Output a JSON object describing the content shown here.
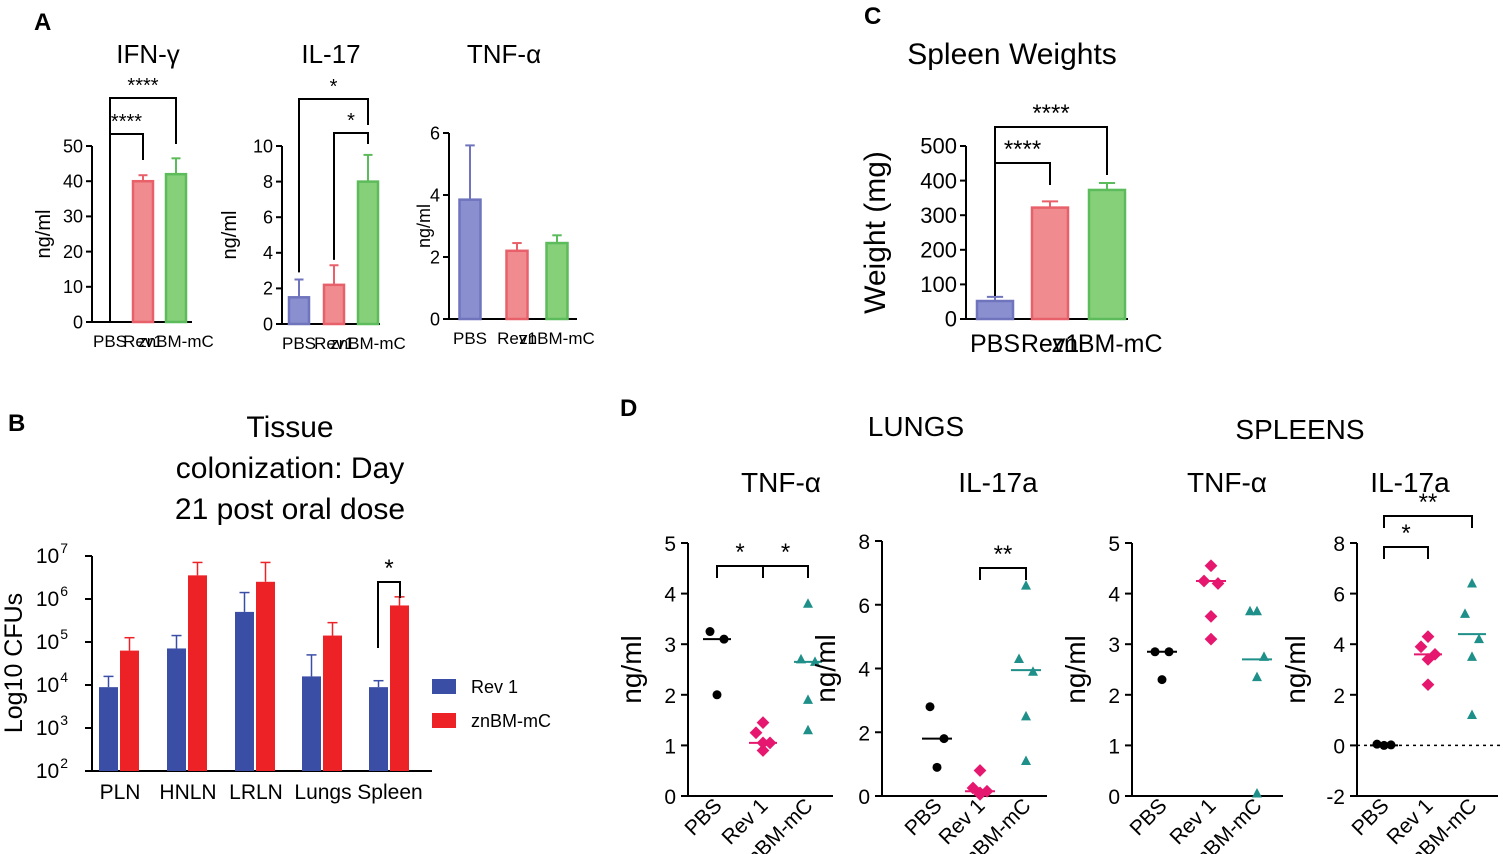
{
  "colors": {
    "blue": "#6f74bd",
    "blue_fill": "#8a8fcf",
    "red": "#e8616a",
    "red_fill": "#f08c90",
    "green": "#5cbb5a",
    "green_fill": "#86d07a",
    "rev_blue": "#3b4ea6",
    "zn_red": "#ec2227",
    "magenta": "#e5176f",
    "teal": "#1f8f89"
  },
  "panel_labels": {
    "a": "A",
    "b": "B",
    "c": "C",
    "d": "D"
  },
  "chart_data": [
    {
      "id": "A1",
      "type": "bar",
      "title": "IFN-γ",
      "ylabel": "ng/ml",
      "ylim": [
        0,
        50
      ],
      "yticks": [
        "0",
        "10",
        "20",
        "30",
        "40",
        "50"
      ],
      "categories": [
        "PBS",
        "Rev1",
        "znBM-mC"
      ],
      "values": [
        0,
        40,
        42
      ],
      "errors": [
        0,
        1.7,
        4.5
      ],
      "sig": [
        {
          "from": 0,
          "to": 1,
          "label": "****"
        },
        {
          "from": 0,
          "to": 2,
          "label": "****"
        }
      ]
    },
    {
      "id": "A2",
      "type": "bar",
      "title": "IL-17",
      "ylabel": "ng/ml",
      "ylim": [
        0,
        10
      ],
      "yticks": [
        "0",
        "2",
        "4",
        "6",
        "8",
        "10"
      ],
      "categories": [
        "PBS",
        "Rev1",
        "znBM-mC"
      ],
      "values": [
        1.5,
        2.2,
        8.0
      ],
      "errors": [
        1.0,
        1.1,
        1.5
      ],
      "sig": [
        {
          "from": 1,
          "to": 2,
          "label": "*"
        },
        {
          "from": 0,
          "to": 2,
          "label": "*"
        }
      ]
    },
    {
      "id": "A3",
      "type": "bar",
      "title": "TNF-α",
      "ylabel": "ng/ml",
      "ylim": [
        0,
        6
      ],
      "yticks": [
        "0",
        "2",
        "4",
        "6"
      ],
      "categories": [
        "PBS",
        "Rev1",
        "znBM-mC"
      ],
      "values": [
        3.85,
        2.2,
        2.45
      ],
      "errors": [
        1.75,
        0.25,
        0.25
      ],
      "sig": []
    },
    {
      "id": "B",
      "type": "bar",
      "title": [
        "Tissue",
        "colonization: Day",
        "21 post oral dose"
      ],
      "ylabel": "Log10 CFUs",
      "ylim_log10": [
        2,
        7
      ],
      "yticks": [
        {
          "base": "10",
          "exp": "2"
        },
        {
          "base": "10",
          "exp": "3"
        },
        {
          "base": "10",
          "exp": "4"
        },
        {
          "base": "10",
          "exp": "5"
        },
        {
          "base": "10",
          "exp": "6"
        },
        {
          "base": "10",
          "exp": "7"
        }
      ],
      "categories": [
        "PLN",
        "HNLN",
        "LRLN",
        "Lungs",
        "Spleen"
      ],
      "series": [
        {
          "name": "Rev 1",
          "log10_values": [
            3.95,
            4.85,
            5.7,
            4.2,
            3.95
          ],
          "log10_upper": [
            4.2,
            5.15,
            6.15,
            4.7,
            4.1
          ]
        },
        {
          "name": "znBM-mC",
          "log10_values": [
            4.8,
            6.55,
            6.4,
            5.15,
            5.85
          ],
          "log10_upper": [
            5.1,
            6.85,
            6.85,
            5.45,
            6.05
          ]
        }
      ],
      "sig": [
        {
          "category": 4,
          "label": "*"
        }
      ]
    },
    {
      "id": "C",
      "type": "bar",
      "title": "Spleen Weights",
      "ylabel": "Weight (mg)",
      "ylim": [
        0,
        500
      ],
      "yticks": [
        "0",
        "100",
        "200",
        "300",
        "400",
        "500"
      ],
      "categories": [
        "PBS",
        "Rev1",
        "znBM-mC"
      ],
      "values": [
        52,
        322,
        373
      ],
      "errors": [
        12,
        18,
        20
      ],
      "sig": [
        {
          "from": 0,
          "to": 1,
          "label": "****"
        },
        {
          "from": 0,
          "to": 2,
          "label": "****"
        }
      ]
    },
    {
      "id": "D_group_labels",
      "labels": [
        "LUNGS",
        "SPLEENS"
      ]
    },
    {
      "id": "D1",
      "type": "scatter",
      "title": "TNF-α",
      "ylabel": "ng/ml",
      "ylim": [
        0,
        5
      ],
      "yticks": [
        "0",
        "1",
        "2",
        "3",
        "4",
        "5"
      ],
      "categories": [
        "PBS",
        "Rev 1",
        "znBM-mC"
      ],
      "points": [
        [
          3.25,
          3.1,
          2.0
        ],
        [
          1.45,
          1.25,
          1.05,
          1.05,
          0.9
        ],
        [
          3.8,
          2.7,
          2.65,
          1.9,
          1.3
        ]
      ],
      "means": [
        3.1,
        1.05,
        2.65
      ],
      "sig": [
        {
          "from": 0,
          "to": 1,
          "label": "*"
        },
        {
          "from": 1,
          "to": 2,
          "label": "*"
        }
      ]
    },
    {
      "id": "D2",
      "type": "scatter",
      "title": "IL-17a",
      "ylabel": "ng/ml",
      "ylim": [
        0,
        8
      ],
      "yticks": [
        "0",
        "2",
        "4",
        "6",
        "8"
      ],
      "categories": [
        "PBS",
        "Rev 1",
        "znBM-mC"
      ],
      "points": [
        [
          2.8,
          1.8,
          0.9
        ],
        [
          0.8,
          0.25,
          0.15,
          0.1,
          0.05
        ],
        [
          6.6,
          4.3,
          3.9,
          2.5,
          1.1
        ]
      ],
      "means": [
        1.8,
        0.15,
        3.95
      ],
      "sig": [
        {
          "from": 1,
          "to": 2,
          "label": "**"
        }
      ]
    },
    {
      "id": "D3",
      "type": "scatter",
      "title": "TNF-α",
      "ylabel": "ng/ml",
      "ylim": [
        0,
        5
      ],
      "yticks": [
        "0",
        "1",
        "2",
        "3",
        "4",
        "5"
      ],
      "categories": [
        "PBS",
        "Rev 1",
        "znBM-mC"
      ],
      "points": [
        [
          2.85,
          2.85,
          2.3
        ],
        [
          4.55,
          4.25,
          4.2,
          3.55,
          3.1
        ],
        [
          3.65,
          3.65,
          2.75,
          2.35,
          0.05
        ]
      ],
      "means": [
        2.85,
        4.25,
        2.7
      ],
      "sig": []
    },
    {
      "id": "D4",
      "type": "scatter",
      "title": "IL-17a",
      "ylabel": "ng/ml",
      "ylim": [
        -2,
        8
      ],
      "yticks": [
        "-2",
        "0",
        "2",
        "4",
        "6",
        "8"
      ],
      "categories": [
        "PBS",
        "Rev 1",
        "znBM-mC"
      ],
      "points": [
        [
          0.05,
          0.02,
          0.0
        ],
        [
          4.3,
          3.9,
          3.6,
          3.4,
          2.4
        ],
        [
          6.4,
          5.2,
          4.2,
          3.5,
          1.2
        ]
      ],
      "means": [
        0.0,
        3.6,
        4.4
      ],
      "sig": [
        {
          "from": 0,
          "to": 1,
          "label": "*"
        },
        {
          "from": 0,
          "to": 2,
          "label": "**"
        }
      ]
    }
  ]
}
